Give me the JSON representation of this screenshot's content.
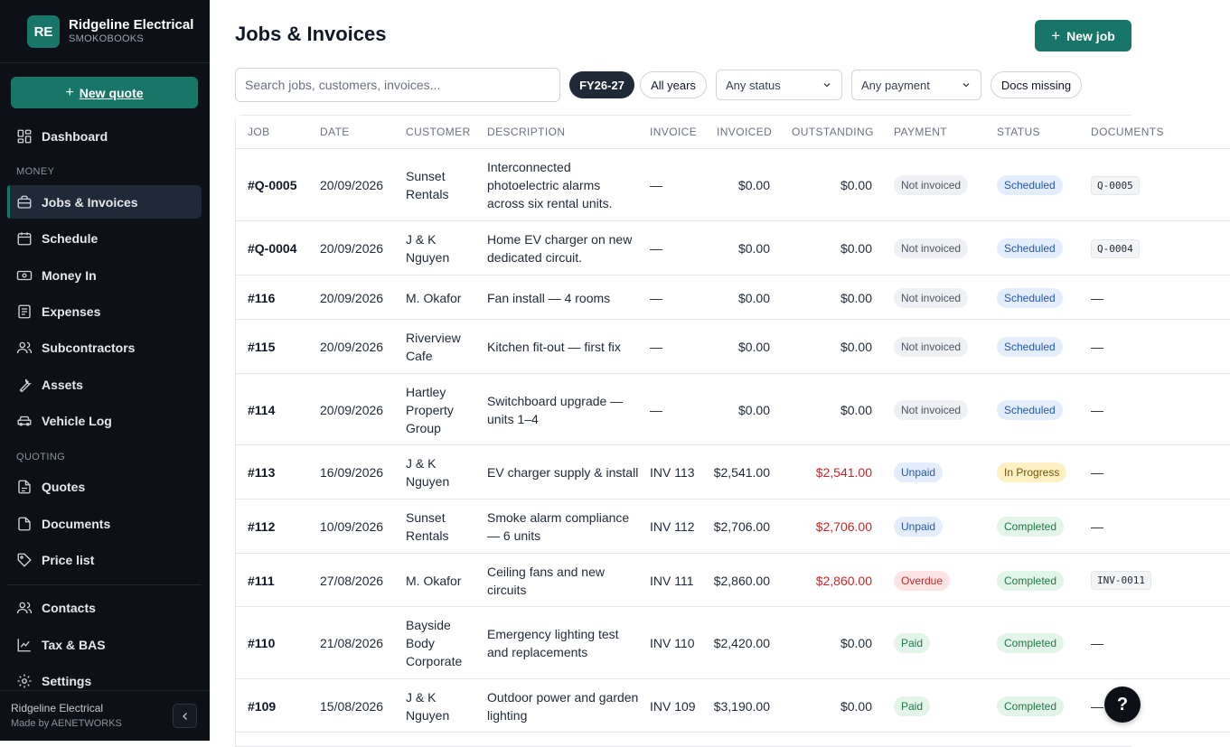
{
  "brand": {
    "initials": "RE",
    "name": "Ridgeline Electrical",
    "sub": "SMOKOBOOKS"
  },
  "sidebar": {
    "new_quote": "New quote",
    "dashboard": "Dashboard",
    "money_section": "MONEY",
    "money_items": [
      "Jobs & Invoices",
      "Schedule",
      "Money In",
      "Expenses",
      "Subcontractors",
      "Assets",
      "Vehicle Log"
    ],
    "quoting_section": "QUOTING",
    "quoting_items": [
      "Quotes",
      "Documents",
      "Price list"
    ],
    "bottom_items": [
      "Contacts",
      "Tax & BAS",
      "Settings"
    ],
    "footer_name": "Ridgeline Electrical",
    "footer_made": "Made by AENETWORKS"
  },
  "header": {
    "title": "Jobs & Invoices",
    "new_job": "New job"
  },
  "filters": {
    "search_placeholder": "Search jobs, customers, invoices...",
    "fy_chip": "FY26-27",
    "all_years": "All years",
    "status_select": "Any status",
    "payment_select": "Any payment",
    "docs_missing": "Docs missing"
  },
  "table": {
    "columns": [
      "JOB",
      "DATE",
      "CUSTOMER",
      "DESCRIPTION",
      "INVOICE",
      "INVOICED",
      "OUTSTANDING",
      "PAYMENT",
      "STATUS",
      "DOCUMENTS"
    ],
    "rows": [
      {
        "job": "#Q-0005",
        "date": "20/09/2026",
        "customer": "Sunset Rentals",
        "description": "Interconnected photoelectric alarms across six rental units.",
        "invoice": "—",
        "invoiced": "$0.00",
        "outstanding": "$0.00",
        "payment": "Not invoiced",
        "status": "Scheduled",
        "docs": "Q-0005"
      },
      {
        "job": "#Q-0004",
        "date": "20/09/2026",
        "customer": "J & K Nguyen",
        "description": "Home EV charger on new dedicated circuit.",
        "invoice": "—",
        "invoiced": "$0.00",
        "outstanding": "$0.00",
        "payment": "Not invoiced",
        "status": "Scheduled",
        "docs": "Q-0004"
      },
      {
        "job": "#116",
        "date": "20/09/2026",
        "customer": "M. Okafor",
        "description": "Fan install — 4 rooms",
        "invoice": "—",
        "invoiced": "$0.00",
        "outstanding": "$0.00",
        "payment": "Not invoiced",
        "status": "Scheduled",
        "docs": "—"
      },
      {
        "job": "#115",
        "date": "20/09/2026",
        "customer": "Riverview Cafe",
        "description": "Kitchen fit-out — first fix",
        "invoice": "—",
        "invoiced": "$0.00",
        "outstanding": "$0.00",
        "payment": "Not invoiced",
        "status": "Scheduled",
        "docs": "—"
      },
      {
        "job": "#114",
        "date": "20/09/2026",
        "customer": "Hartley Property Group",
        "description": "Switchboard upgrade — units 1–4",
        "invoice": "—",
        "invoiced": "$0.00",
        "outstanding": "$0.00",
        "payment": "Not invoiced",
        "status": "Scheduled",
        "docs": "—"
      },
      {
        "job": "#113",
        "date": "16/09/2026",
        "customer": "J & K Nguyen",
        "description": "EV charger supply & install",
        "invoice": "INV 113",
        "invoiced": "$2,541.00",
        "outstanding": "$2,541.00",
        "payment": "Unpaid",
        "status": "In Progress",
        "docs": "—"
      },
      {
        "job": "#112",
        "date": "10/09/2026",
        "customer": "Sunset Rentals",
        "description": "Smoke alarm compliance — 6 units",
        "invoice": "INV 112",
        "invoiced": "$2,706.00",
        "outstanding": "$2,706.00",
        "payment": "Unpaid",
        "status": "Completed",
        "docs": "—"
      },
      {
        "job": "#111",
        "date": "27/08/2026",
        "customer": "M. Okafor",
        "description": "Ceiling fans and new circuits",
        "invoice": "INV 111",
        "invoiced": "$2,860.00",
        "outstanding": "$2,860.00",
        "payment": "Overdue",
        "status": "Completed",
        "docs": "INV-0011"
      },
      {
        "job": "#110",
        "date": "21/08/2026",
        "customer": "Bayside Body Corporate",
        "description": "Emergency lighting test and replacements",
        "invoice": "INV 110",
        "invoiced": "$2,420.00",
        "outstanding": "$0.00",
        "payment": "Paid",
        "status": "Completed",
        "docs": "—"
      },
      {
        "job": "#109",
        "date": "15/08/2026",
        "customer": "J & K Nguyen",
        "description": "Outdoor power and garden lighting",
        "invoice": "INV 109",
        "invoiced": "$3,190.00",
        "outstanding": "$0.00",
        "payment": "Paid",
        "status": "Completed",
        "docs": "—"
      }
    ]
  },
  "help": "?"
}
